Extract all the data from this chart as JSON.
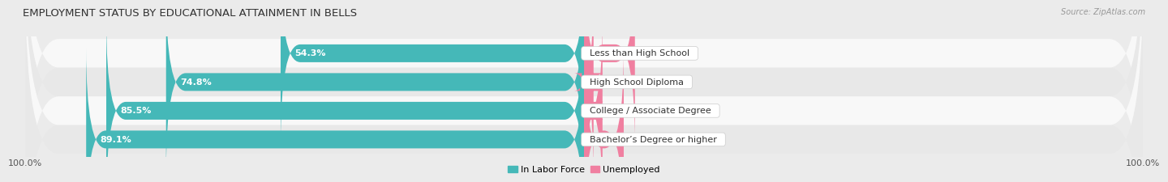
{
  "title": "EMPLOYMENT STATUS BY EDUCATIONAL ATTAINMENT IN BELLS",
  "source": "Source: ZipAtlas.com",
  "categories": [
    "Less than High School",
    "High School Diploma",
    "College / Associate Degree",
    "Bachelor’s Degree or higher"
  ],
  "labor_force": [
    54.3,
    74.8,
    85.5,
    89.1
  ],
  "unemployed": [
    9.1,
    1.7,
    3.3,
    7.1
  ],
  "labor_force_color": "#45b8b8",
  "unemployed_color": "#f07fa0",
  "bar_height": 0.62,
  "bg_color": "#ebebeb",
  "row_colors_even": "#f8f8f8",
  "row_colors_odd": "#e8e8e8",
  "axis_label_left": "100.0%",
  "axis_label_right": "100.0%",
  "legend_labor": "In Labor Force",
  "legend_unemployed": "Unemployed",
  "max_val": 100.0,
  "title_fontsize": 9.5,
  "label_fontsize": 8,
  "tick_fontsize": 8,
  "lf_text_color_inside": "#ffffff",
  "lf_text_color_outside": "#555555"
}
